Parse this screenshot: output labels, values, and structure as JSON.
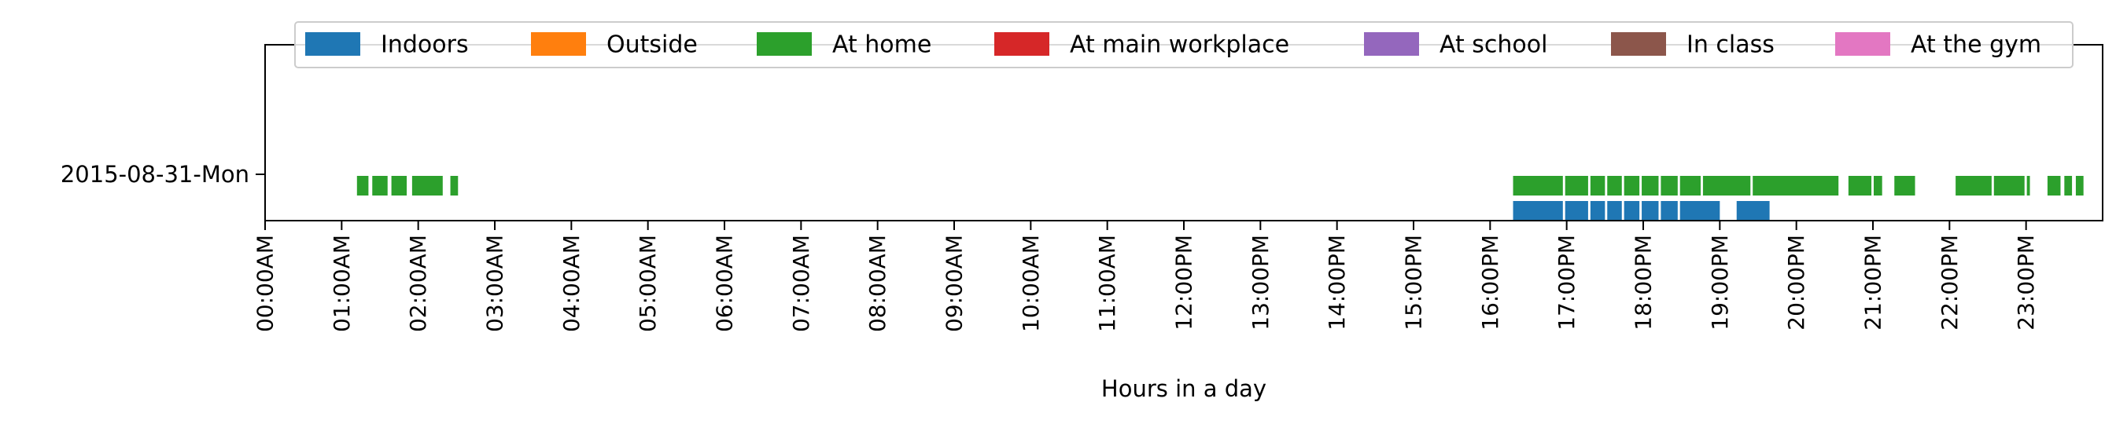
{
  "chart_data": {
    "type": "timeline",
    "title": "",
    "xlabel": "Hours in a day",
    "ylabel": "",
    "x_range_hours": [
      0,
      24
    ],
    "x_ticks": [
      "00:00AM",
      "01:00AM",
      "02:00AM",
      "03:00AM",
      "04:00AM",
      "05:00AM",
      "06:00AM",
      "07:00AM",
      "08:00AM",
      "09:00AM",
      "10:00AM",
      "11:00AM",
      "12:00PM",
      "13:00PM",
      "14:00PM",
      "15:00PM",
      "16:00PM",
      "17:00PM",
      "18:00PM",
      "19:00PM",
      "20:00PM",
      "21:00PM",
      "22:00PM",
      "23:00PM"
    ],
    "rows": [
      "2015-08-31-Mon"
    ],
    "legend_position": "top",
    "grid": false,
    "series": [
      {
        "name": "Indoors",
        "color": "#1f77b4",
        "intervals": [
          [
            16.3,
            16.95
          ],
          [
            16.98,
            17.28
          ],
          [
            17.31,
            17.5
          ],
          [
            17.53,
            17.72
          ],
          [
            17.75,
            17.95
          ],
          [
            17.98,
            18.2
          ],
          [
            18.23,
            18.45
          ],
          [
            18.48,
            19.0
          ],
          [
            19.22,
            19.65
          ]
        ]
      },
      {
        "name": "Outside",
        "color": "#ff7f0e",
        "intervals": []
      },
      {
        "name": "At home",
        "color": "#2ca02c",
        "intervals": [
          [
            1.2,
            1.35
          ],
          [
            1.4,
            1.6
          ],
          [
            1.65,
            1.85
          ],
          [
            1.92,
            2.32
          ],
          [
            2.42,
            2.52
          ],
          [
            16.3,
            16.95
          ],
          [
            16.98,
            17.28
          ],
          [
            17.31,
            17.5
          ],
          [
            17.53,
            17.72
          ],
          [
            17.75,
            17.95
          ],
          [
            17.98,
            18.2
          ],
          [
            18.23,
            18.45
          ],
          [
            18.48,
            18.75
          ],
          [
            18.78,
            19.4
          ],
          [
            19.43,
            20.55
          ],
          [
            20.68,
            20.98
          ],
          [
            21.01,
            21.12
          ],
          [
            21.28,
            21.55
          ],
          [
            22.08,
            22.55
          ],
          [
            22.58,
            22.98
          ],
          [
            23.01,
            23.05
          ],
          [
            23.28,
            23.45
          ],
          [
            23.5,
            23.6
          ],
          [
            23.65,
            23.75
          ]
        ]
      },
      {
        "name": "At main workplace",
        "color": "#d62728",
        "intervals": []
      },
      {
        "name": "At school",
        "color": "#9467bd",
        "intervals": []
      },
      {
        "name": "In class",
        "color": "#8c564b",
        "intervals": []
      },
      {
        "name": "At the gym",
        "color": "#e377c2",
        "intervals": []
      }
    ]
  }
}
